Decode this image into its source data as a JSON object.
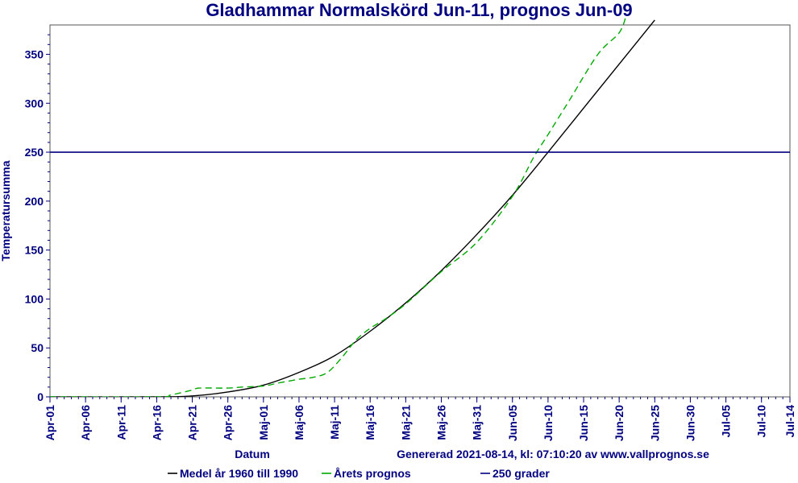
{
  "chart_data": {
    "type": "line",
    "title": "Gladhammar Normalskörd Jun-11, prognos Jun-09",
    "xlabel": "Datum",
    "ylabel": "Temperatursumma",
    "ylim": [
      0,
      380
    ],
    "yticks": [
      0,
      50,
      100,
      150,
      200,
      250,
      300,
      350
    ],
    "xticks": [
      "Apr-01",
      "Apr-06",
      "Apr-11",
      "Apr-16",
      "Apr-21",
      "Apr-26",
      "Maj-01",
      "Maj-06",
      "Maj-11",
      "Maj-16",
      "Maj-21",
      "Maj-26",
      "Maj-31",
      "Jun-05",
      "Jun-10",
      "Jun-15",
      "Jun-20",
      "Jun-25",
      "Jun-30",
      "Jul-05",
      "Jul-10",
      "Jul-14"
    ],
    "generated": "Genererad 2021-08-14, kl: 07:10:20 av www.vallprognos.se",
    "grid": false,
    "series": [
      {
        "name": "Medel år 1960 till 1990",
        "color": "#000000",
        "style": "solid",
        "x": [
          "Apr-01",
          "Apr-16",
          "Apr-21",
          "Apr-26",
          "Maj-01",
          "Maj-06",
          "Maj-11",
          "Maj-16",
          "Maj-21",
          "Maj-26",
          "Maj-31",
          "Jun-05",
          "Jun-10",
          "Jun-15",
          "Jun-20",
          "Jun-25"
        ],
        "values": [
          0,
          0,
          1,
          5,
          12,
          25,
          42,
          67,
          96,
          129,
          166,
          206,
          250,
          295,
          340,
          385
        ]
      },
      {
        "name": "Årets prognos",
        "color": "#00aa00",
        "style": "dashed",
        "x": [
          "Apr-01",
          "Apr-16",
          "Apr-18",
          "Apr-21",
          "Apr-22",
          "Apr-26",
          "Apr-28",
          "Maj-01",
          "Maj-03",
          "Maj-06",
          "Maj-08",
          "Maj-10",
          "Maj-12",
          "Maj-14",
          "Maj-16",
          "Maj-18",
          "Maj-21",
          "Maj-26",
          "Maj-31",
          "Jun-05",
          "Jun-08",
          "Jun-10",
          "Jun-13",
          "Jun-17",
          "Jun-20",
          "Jun-21"
        ],
        "values": [
          0,
          0,
          2,
          7,
          9,
          9,
          10,
          11,
          14,
          18,
          20,
          25,
          40,
          58,
          70,
          79,
          95,
          128,
          158,
          205,
          245,
          268,
          303,
          350,
          372,
          390
        ]
      },
      {
        "name": "250 grader",
        "color": "#000080",
        "style": "solid",
        "x": [
          "Apr-01",
          "Jul-14"
        ],
        "values": [
          250,
          250
        ]
      }
    ]
  }
}
